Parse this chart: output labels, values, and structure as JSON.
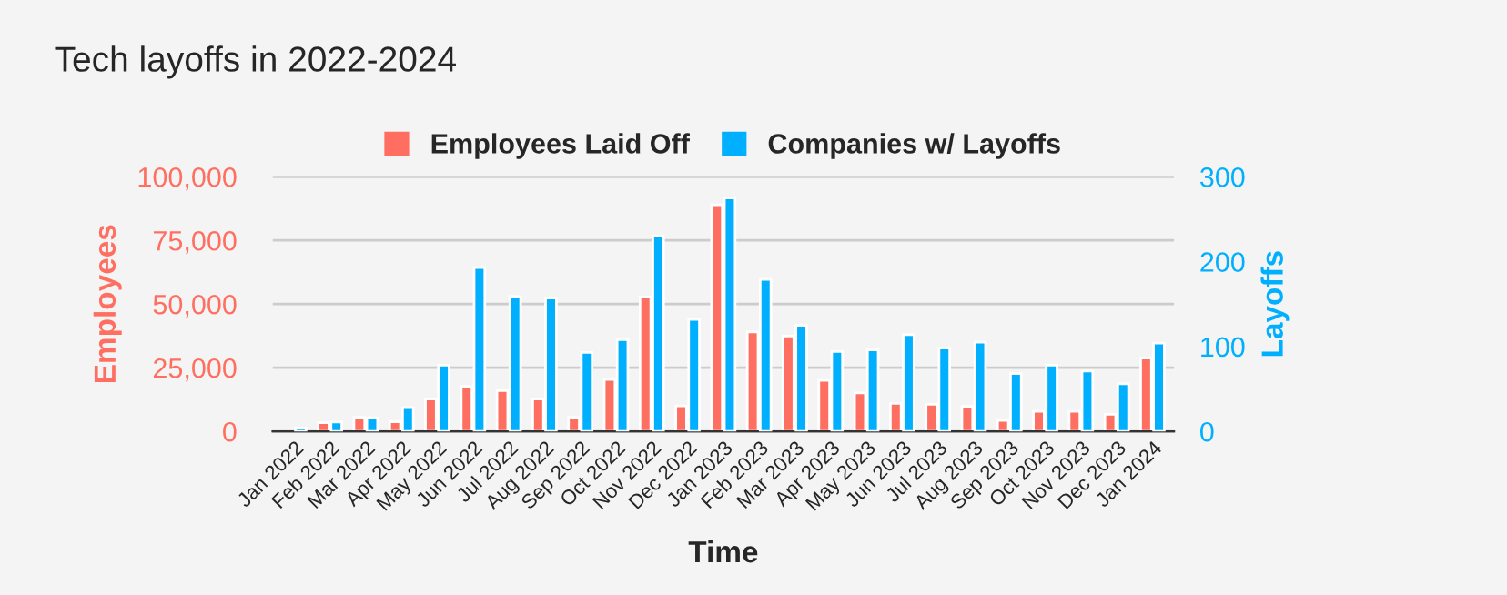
{
  "chart_data": {
    "type": "bar",
    "title": "Tech layoffs in 2022-2024",
    "categories": [
      "Jan 2022",
      "Feb 2022",
      "Mar 2022",
      "Apr 2022",
      "May 2022",
      "Jun 2022",
      "Jul 2022",
      "Aug 2022",
      "Sep 2022",
      "Oct 2022",
      "Nov 2022",
      "Dec 2022",
      "Jan 2023",
      "Feb 2023",
      "Mar 2023",
      "Apr 2023",
      "May 2023",
      "Jun 2023",
      "Jul 2023",
      "Aug 2023",
      "Sep 2023",
      "Oct 2023",
      "Nov 2023",
      "Dec 2023",
      "Jan 2024"
    ],
    "series": [
      {
        "name": "Employees Laid Off",
        "color": "#ff6f61",
        "axis": "y",
        "values": [
          null,
          3400,
          5500,
          3800,
          12700,
          17700,
          16000,
          12700,
          5500,
          20400,
          52800,
          10000,
          89000,
          39000,
          37400,
          20000,
          15100,
          11000,
          10600,
          9800,
          4300,
          7900,
          7900,
          6700,
          28800
        ]
      },
      {
        "name": "Companies w/ Layoffs",
        "color": "#00b0ff",
        "axis": "y2",
        "values": [
          4,
          11,
          16,
          28,
          78,
          193,
          159,
          157,
          93,
          108,
          230,
          132,
          275,
          179,
          125,
          94,
          96,
          114,
          98,
          105,
          68,
          78,
          71,
          56,
          104
        ]
      }
    ],
    "xlabel": "Time",
    "ylabel": "Employees",
    "y2label": "Layoffs",
    "ylim": [
      0,
      100000
    ],
    "yticks": [
      0,
      {
        "value": 25000,
        "label": "25,000"
      },
      {
        "value": 50000,
        "label": "50,000"
      },
      {
        "value": 75000,
        "label": "75,000"
      },
      {
        "value": 100000,
        "label": "100,000"
      }
    ],
    "y2lim": [
      0,
      300
    ],
    "y2ticks": [
      0,
      100,
      200,
      300
    ],
    "grid": "y",
    "legend": "top"
  }
}
